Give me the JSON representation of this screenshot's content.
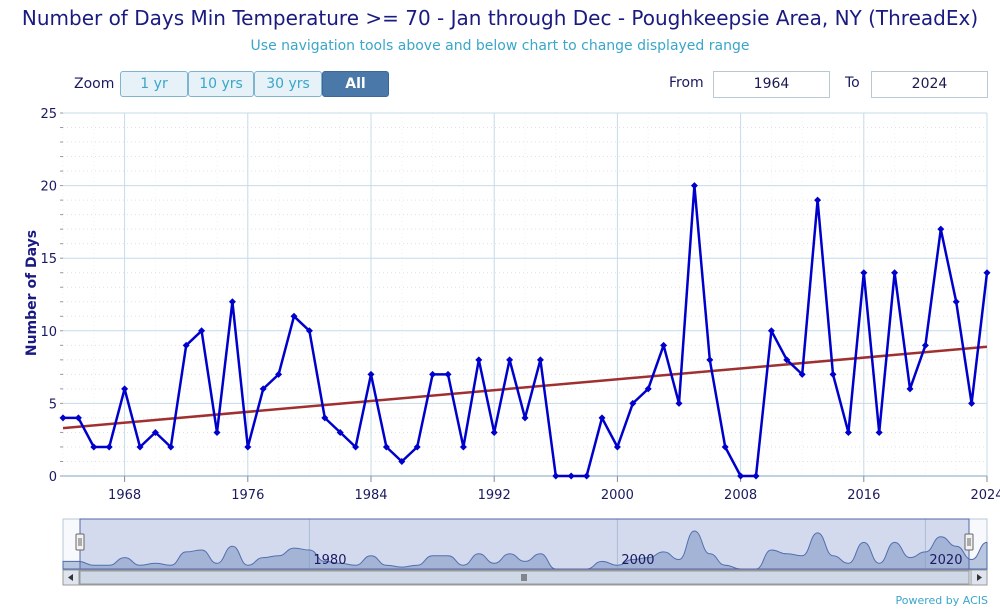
{
  "header": {
    "title": "Number of Days Min Temperature >= 70 - Jan through Dec - Poughkeepsie Area, NY (ThreadEx)",
    "subtitle": "Use navigation tools above and below chart to change displayed range"
  },
  "toolbar": {
    "zoom_label": "Zoom",
    "zoom_buttons": [
      "1 yr",
      "10 yrs",
      "30 yrs",
      "All"
    ],
    "active_zoom": "All",
    "from_label": "From",
    "from_value": "1964",
    "to_label": "To",
    "to_value": "2024"
  },
  "credits": "Powered by ACIS",
  "colors": {
    "series": "#0000cc",
    "trend": "#a03030",
    "grid": "#c5dcea",
    "navigator_fill": "#8fa3cc",
    "active_button": "#4a78a8"
  },
  "chart_data": {
    "type": "line",
    "ylabel": "Number of Days",
    "ylim": [
      0,
      25
    ],
    "yticks": [
      0,
      5,
      10,
      15,
      20,
      25
    ],
    "xlim": [
      1964,
      2024
    ],
    "xticks": [
      1968,
      1976,
      1984,
      1992,
      2000,
      2008,
      2016,
      2024
    ],
    "grid": true,
    "x": [
      1964,
      1965,
      1966,
      1967,
      1968,
      1969,
      1970,
      1971,
      1972,
      1973,
      1974,
      1975,
      1976,
      1977,
      1978,
      1979,
      1980,
      1981,
      1982,
      1983,
      1984,
      1985,
      1986,
      1987,
      1988,
      1989,
      1990,
      1991,
      1992,
      1993,
      1994,
      1995,
      1996,
      1997,
      1998,
      1999,
      2000,
      2001,
      2002,
      2003,
      2004,
      2005,
      2006,
      2007,
      2008,
      2009,
      2010,
      2011,
      2012,
      2013,
      2014,
      2015,
      2016,
      2017,
      2018,
      2019,
      2020,
      2021,
      2022,
      2023,
      2024
    ],
    "series": [
      {
        "values": [
          4,
          4,
          2,
          2,
          6,
          2,
          3,
          2,
          9,
          10,
          3,
          12,
          2,
          6,
          7,
          11,
          10,
          4,
          3,
          2,
          7,
          2,
          1,
          2,
          7,
          7,
          2,
          8,
          3,
          8,
          4,
          8,
          0,
          0,
          0,
          4,
          2,
          5,
          6,
          9,
          5,
          20,
          8,
          2,
          0,
          0,
          10,
          8,
          7,
          19,
          7,
          3,
          14,
          3,
          14,
          6,
          9,
          17,
          12,
          5,
          14
        ]
      }
    ],
    "trend": {
      "start": [
        1964,
        3.3
      ],
      "end": [
        2024,
        8.9
      ]
    },
    "navigator": {
      "xticks": [
        1980,
        2000,
        2020
      ]
    }
  }
}
